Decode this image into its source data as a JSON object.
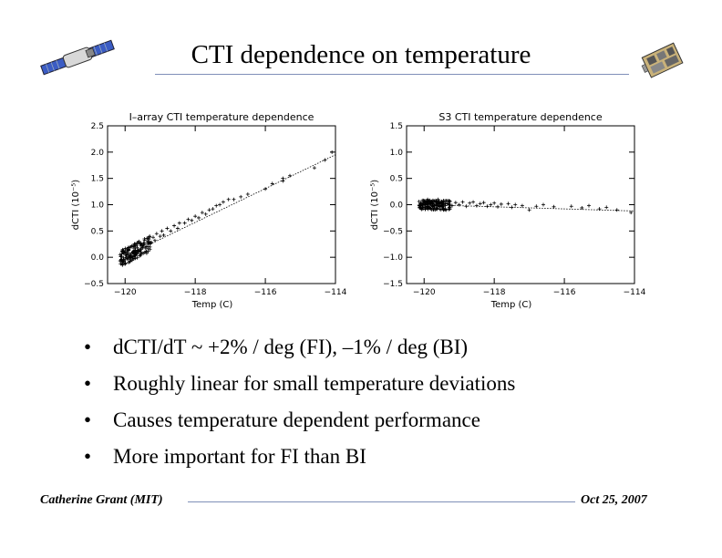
{
  "slide": {
    "title": "CTI dependence on temperature",
    "bullets": [
      "dCTI/dT ~  +2% / deg (FI),  –1% / deg (BI)",
      "Roughly linear for small temperature deviations",
      "Causes temperature dependent performance",
      "More important for FI than BI"
    ],
    "bullet_symbol": "•",
    "footer": {
      "author": "Catherine Grant (MIT)",
      "date": "Oct 25, 2007"
    },
    "logos": {
      "left": "satellite-icon",
      "right": "instrument-icon"
    }
  },
  "chart_data": [
    {
      "type": "scatter",
      "title": "I–array CTI temperature dependence",
      "xlabel": "Temp (C)",
      "ylabel": "dCTI (10⁻⁵)",
      "xlim": [
        -120.5,
        -114
      ],
      "ylim": [
        -0.5,
        2.5
      ],
      "xticks": [
        -120,
        -118,
        -116,
        -114
      ],
      "yticks": [
        -0.5,
        0.0,
        0.5,
        1.0,
        1.5,
        2.0,
        2.5
      ],
      "fit_line": {
        "x": [
          -120,
          -114
        ],
        "y": [
          0.02,
          1.95
        ]
      },
      "points": [
        [
          -120.1,
          0.02
        ],
        [
          -120.05,
          -0.05
        ],
        [
          -120.0,
          0.1
        ],
        [
          -119.95,
          0.05
        ],
        [
          -119.9,
          0.15
        ],
        [
          -119.9,
          -0.1
        ],
        [
          -119.85,
          0.0
        ],
        [
          -119.8,
          0.2
        ],
        [
          -119.8,
          0.08
        ],
        [
          -119.75,
          0.12
        ],
        [
          -119.7,
          0.25
        ],
        [
          -119.7,
          0.05
        ],
        [
          -119.65,
          0.18
        ],
        [
          -119.6,
          0.3
        ],
        [
          -119.55,
          0.15
        ],
        [
          -119.5,
          0.22
        ],
        [
          -119.45,
          0.35
        ],
        [
          -119.4,
          0.2
        ],
        [
          -119.35,
          0.3
        ],
        [
          -119.3,
          0.4
        ],
        [
          -119.25,
          0.28
        ],
        [
          -119.2,
          0.38
        ],
        [
          -119.15,
          0.32
        ],
        [
          -119.1,
          0.45
        ],
        [
          -119.0,
          0.4
        ],
        [
          -118.95,
          0.5
        ],
        [
          -118.9,
          0.42
        ],
        [
          -118.8,
          0.55
        ],
        [
          -118.7,
          0.5
        ],
        [
          -118.6,
          0.6
        ],
        [
          -118.5,
          0.55
        ],
        [
          -118.45,
          0.65
        ],
        [
          -118.3,
          0.65
        ],
        [
          -118.2,
          0.72
        ],
        [
          -118.1,
          0.7
        ],
        [
          -118.0,
          0.78
        ],
        [
          -117.9,
          0.75
        ],
        [
          -117.8,
          0.85
        ],
        [
          -117.7,
          0.82
        ],
        [
          -117.6,
          0.9
        ],
        [
          -117.5,
          0.92
        ],
        [
          -117.4,
          0.98
        ],
        [
          -117.3,
          1.0
        ],
        [
          -117.2,
          1.05
        ],
        [
          -117.05,
          1.1
        ],
        [
          -116.9,
          1.1
        ],
        [
          -116.7,
          1.15
        ],
        [
          -116.5,
          1.2
        ],
        [
          -116.0,
          1.3
        ],
        [
          -115.8,
          1.4
        ],
        [
          -115.5,
          1.5
        ],
        [
          -115.3,
          1.55
        ],
        [
          -115.5,
          1.45
        ],
        [
          -114.6,
          1.7
        ],
        [
          -114.3,
          1.85
        ],
        [
          -114.1,
          2.0
        ]
      ]
    },
    {
      "type": "scatter",
      "title": "S3 CTI temperature dependence",
      "xlabel": "Temp (C)",
      "ylabel": "dCTI (10⁻⁵)",
      "xlim": [
        -120.5,
        -114
      ],
      "ylim": [
        -1.5,
        1.5
      ],
      "xticks": [
        -120,
        -118,
        -116,
        -114
      ],
      "yticks": [
        -1.5,
        -1.0,
        -0.5,
        0.0,
        0.5,
        1.0,
        1.5
      ],
      "fit_line": {
        "x": [
          -120,
          -114
        ],
        "y": [
          0.0,
          -0.12
        ]
      },
      "points": [
        [
          -120.1,
          0.02
        ],
        [
          -120.05,
          -0.04
        ],
        [
          -120.0,
          0.06
        ],
        [
          -119.95,
          0.0
        ],
        [
          -119.9,
          0.1
        ],
        [
          -119.85,
          -0.05
        ],
        [
          -119.8,
          0.04
        ],
        [
          -119.75,
          0.08
        ],
        [
          -119.7,
          -0.02
        ],
        [
          -119.65,
          0.05
        ],
        [
          -119.6,
          0.1
        ],
        [
          -119.55,
          -0.03
        ],
        [
          -119.5,
          0.06
        ],
        [
          -119.4,
          0.02
        ],
        [
          -119.3,
          0.07
        ],
        [
          -119.2,
          -0.02
        ],
        [
          -119.1,
          0.04
        ],
        [
          -119.0,
          0.0
        ],
        [
          -118.9,
          0.05
        ],
        [
          -118.8,
          -0.03
        ],
        [
          -118.7,
          0.03
        ],
        [
          -118.6,
          0.05
        ],
        [
          -118.5,
          -0.02
        ],
        [
          -118.4,
          0.02
        ],
        [
          -118.3,
          0.04
        ],
        [
          -118.2,
          -0.03
        ],
        [
          -118.1,
          0.0
        ],
        [
          -118.0,
          0.03
        ],
        [
          -117.9,
          -0.04
        ],
        [
          -117.8,
          0.01
        ],
        [
          -117.6,
          0.02
        ],
        [
          -117.5,
          -0.05
        ],
        [
          -117.4,
          0.0
        ],
        [
          -117.2,
          -0.02
        ],
        [
          -117.0,
          -0.1
        ],
        [
          -116.8,
          -0.03
        ],
        [
          -116.6,
          0.0
        ],
        [
          -116.3,
          -0.04
        ],
        [
          -115.8,
          -0.03
        ],
        [
          -115.5,
          -0.06
        ],
        [
          -115.3,
          -0.02
        ],
        [
          -115.0,
          -0.08
        ],
        [
          -114.8,
          -0.05
        ],
        [
          -114.5,
          -0.1
        ],
        [
          -114.1,
          -0.15
        ]
      ]
    }
  ]
}
